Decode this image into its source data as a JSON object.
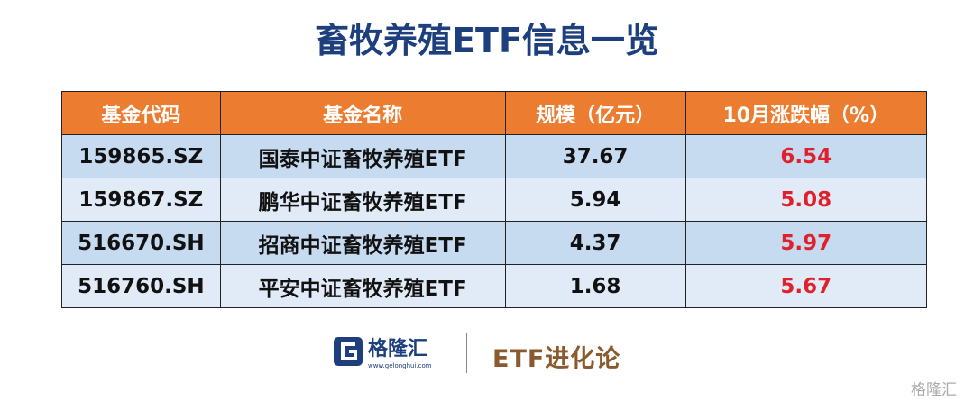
{
  "header": {
    "title": "畜牧养殖ETF信息一览"
  },
  "table": {
    "columns": [
      "基金代码",
      "基金名称",
      "规模（亿元）",
      "10月涨跌幅（%）"
    ],
    "rows": [
      [
        "159865.SZ",
        "国泰中证畜牧养殖ETF",
        "37.67",
        "6.54"
      ],
      [
        "159867.SZ",
        "鹏华中证畜牧养殖ETF",
        "5.94",
        "5.08"
      ],
      [
        "516670.SH",
        "招商中证畜牧养殖ETF",
        "4.37",
        "5.97"
      ],
      [
        "516760.SH",
        "平安中证畜牧养殖ETF",
        "1.68",
        "5.67"
      ]
    ]
  },
  "footer": {
    "logo_name": "格隆汇",
    "logo_url": "www.gelonghui.com",
    "brand": "ETF进化论"
  },
  "watermark": {
    "text": "格隆汇"
  }
}
